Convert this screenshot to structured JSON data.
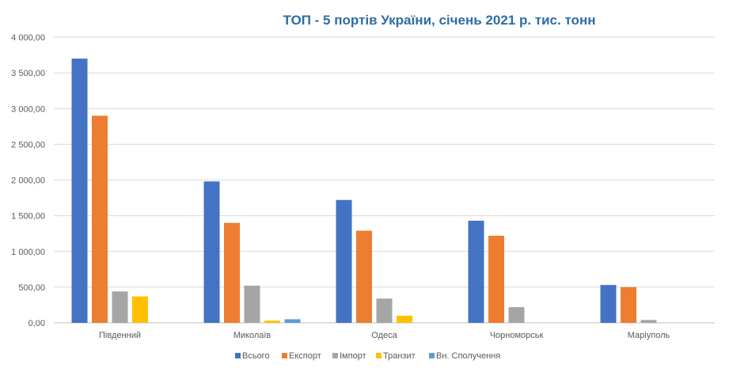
{
  "chart_data": {
    "type": "bar",
    "title": "ТОП - 5 портів України, січень 2021 р. тис. тонн",
    "xlabel": "",
    "ylabel": "",
    "categories": [
      "Південний",
      "Миколаїв",
      "Одеса",
      "Чорноморськ",
      "Маріуполь"
    ],
    "series": [
      {
        "name": "Всього",
        "color": "#4472c4",
        "values": [
          3700,
          1980,
          1720,
          1430,
          530
        ]
      },
      {
        "name": "Експорт",
        "color": "#ed7d31",
        "values": [
          2900,
          1400,
          1290,
          1220,
          500
        ]
      },
      {
        "name": "Імпорт",
        "color": "#a5a5a5",
        "values": [
          440,
          520,
          340,
          220,
          40
        ]
      },
      {
        "name": "Транзит",
        "color": "#ffc000",
        "values": [
          370,
          30,
          100,
          0,
          0
        ]
      },
      {
        "name": "Вн. Сполучення",
        "color": "#5b9bd5",
        "values": [
          0,
          50,
          0,
          0,
          0
        ]
      }
    ],
    "ylim": [
      0,
      4000
    ],
    "yticks": [
      "0,00",
      "500,00",
      "1 000,00",
      "1 500,00",
      "2 000,00",
      "2 500,00",
      "3 000,00",
      "3 500,00",
      "4 000,00"
    ],
    "grid": true,
    "legend_position": "bottom"
  }
}
